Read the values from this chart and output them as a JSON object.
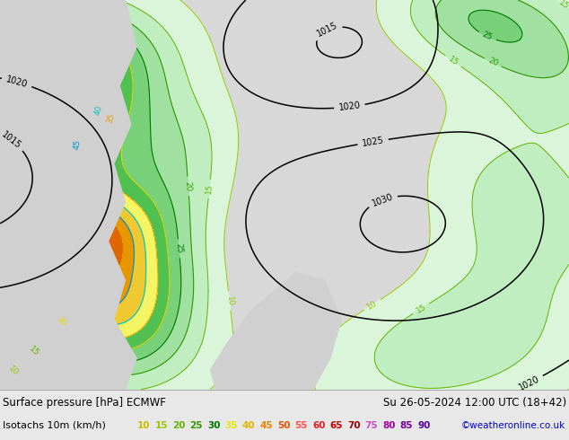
{
  "title_left": "Surface pressure [hPa] ECMWF",
  "title_right": "Su 26-05-2024 12:00 UTC (18+42)",
  "legend_label": "Isotachs 10m (km/h)",
  "copyright": "©weatheronline.co.uk",
  "legend_values": [
    "10",
    "15",
    "20",
    "25",
    "30",
    "35",
    "40",
    "45",
    "50",
    "55",
    "60",
    "65",
    "70",
    "75",
    "80",
    "85",
    "90"
  ],
  "legend_colors": [
    "#c8be00",
    "#96c800",
    "#64b400",
    "#329600",
    "#007800",
    "#e6e600",
    "#e6b400",
    "#e68200",
    "#e65000",
    "#ff5050",
    "#e61e1e",
    "#c80000",
    "#a00000",
    "#c850c8",
    "#a000a0",
    "#780096",
    "#5000a0"
  ],
  "map_bg_left": "#d8d8d8",
  "map_bg_right": "#e0e0e0",
  "land_color": "#c8e8c8",
  "sea_color": "#d0d0d0",
  "bottom_bg": "#ffffff",
  "separator_color": "#aaaaaa",
  "isobar_color": "#000000",
  "isobar_label_color": "#000000"
}
